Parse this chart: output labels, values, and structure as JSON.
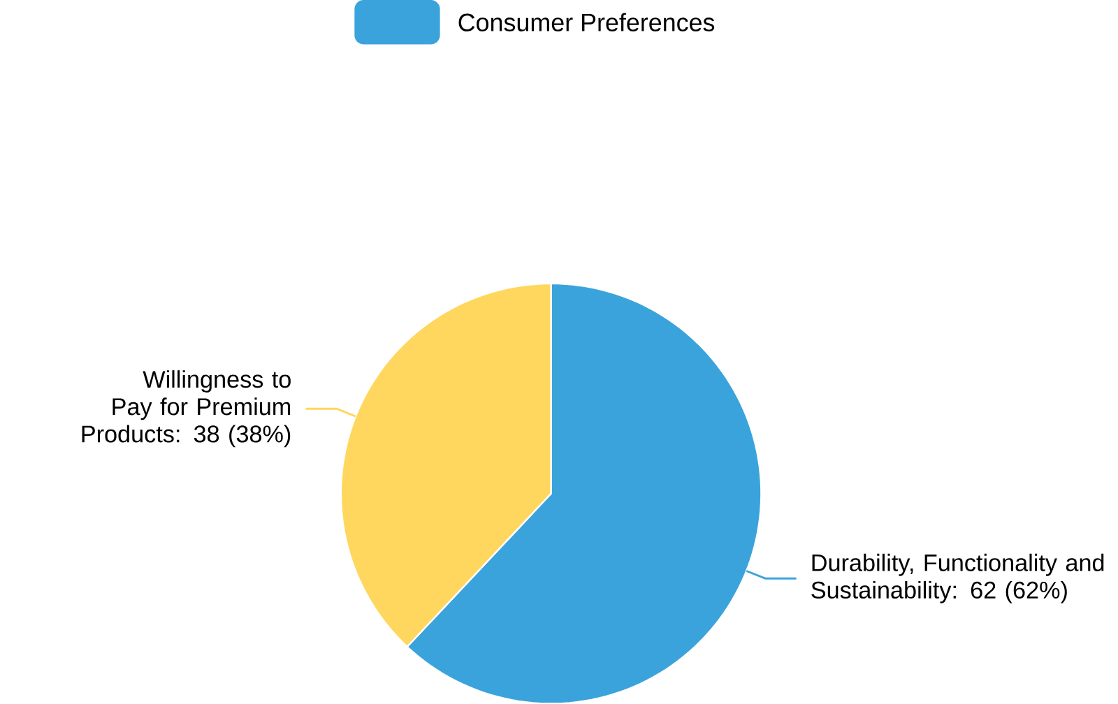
{
  "chart_data": {
    "type": "pie",
    "categories": [
      "Durability, Functionality and Sustainability",
      "Willingness to Pay for Premium Products"
    ],
    "series": [
      {
        "name": "Consumer Preferences",
        "values": [
          62,
          38
        ],
        "colors": [
          "#3ba3dc",
          "#ffd75f"
        ],
        "value_labels": [
          ": 62 (62%)",
          ": 38 (38%)"
        ]
      }
    ],
    "legend": "top"
  }
}
